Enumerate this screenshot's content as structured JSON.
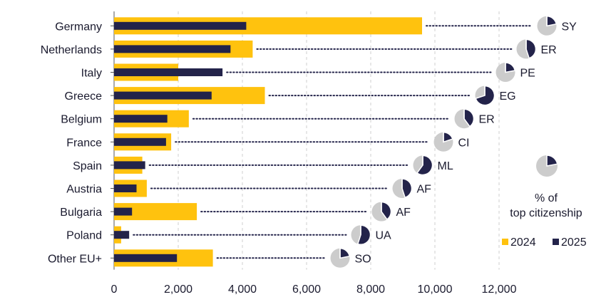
{
  "chart_data": {
    "type": "bar",
    "orientation": "horizontal",
    "categories": [
      "Germany",
      "Netherlands",
      "Italy",
      "Greece",
      "Belgium",
      "France",
      "Spain",
      "Austria",
      "Bulgaria",
      "Poland",
      "Other EU+"
    ],
    "series": [
      {
        "name": "2024",
        "values": [
          9600,
          4320,
          2000,
          4700,
          2330,
          1780,
          880,
          1020,
          2580,
          220,
          3080
        ]
      },
      {
        "name": "2025",
        "values": [
          4120,
          3630,
          3380,
          3040,
          1660,
          1620,
          970,
          700,
          560,
          470,
          1960
        ]
      }
    ],
    "top_citizenship": {
      "codes": [
        "SY",
        "ER",
        "PE",
        "EG",
        "ER",
        "CI",
        "ML",
        "AF",
        "AF",
        "UA",
        "SO"
      ],
      "share_percent": [
        22,
        45,
        22,
        70,
        40,
        20,
        60,
        45,
        40,
        55,
        22
      ]
    },
    "xlim": [
      0,
      12000
    ],
    "xticks": [
      "0",
      "2,000",
      "4,000",
      "6,000",
      "8,000",
      "10,000",
      "12,000"
    ],
    "grid": "vertical dashed",
    "legend": {
      "pie_label": "% of top citizenship",
      "entries": [
        "2024",
        "2025"
      ],
      "placement": "right"
    },
    "colors": {
      "2024": "#FFC20E",
      "2025": "#23234A",
      "pie_rest": "#CCCCCC",
      "grid": "#CFCFCF",
      "dots": "#23234A"
    }
  }
}
